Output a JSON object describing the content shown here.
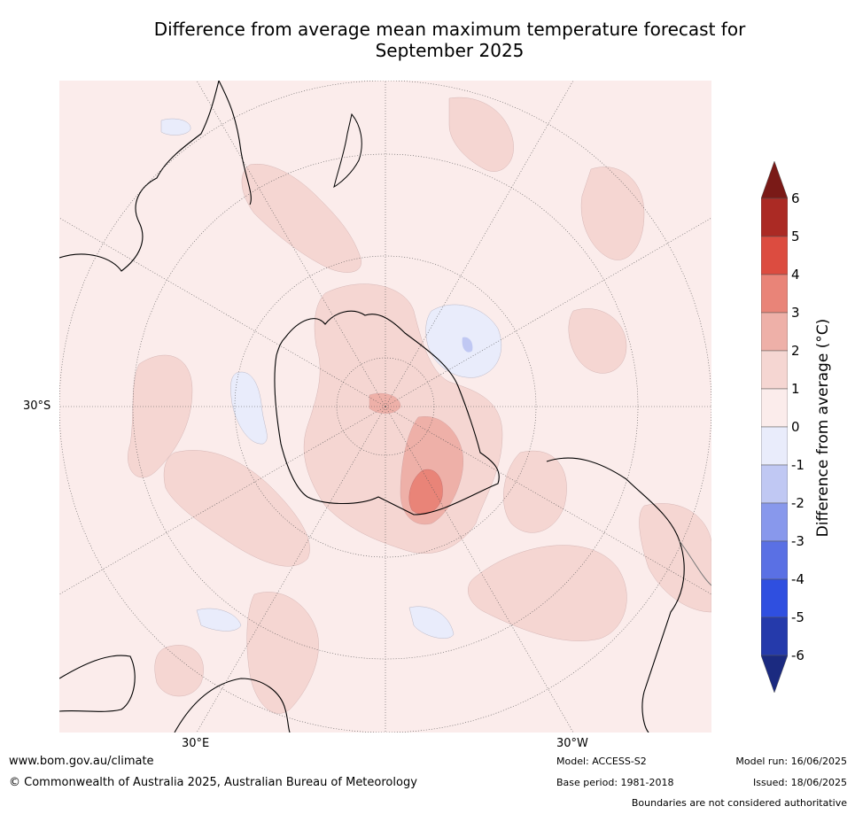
{
  "title_line1": "Difference from average mean maximum temperature forecast for",
  "title_line2": "September 2025",
  "lat_label": "30°S",
  "lon_labels": [
    "30°E",
    "30°W"
  ],
  "colorbar": {
    "label": "Difference from average (°C)",
    "ticks": [
      "6",
      "5",
      "4",
      "3",
      "2",
      "1",
      "0",
      "-1",
      "-2",
      "-3",
      "-4",
      "-5",
      "-6"
    ],
    "colors_top_to_bottom": [
      "#7a1a17",
      "#ab2a24",
      "#dc4c40",
      "#e98478",
      "#eeb0a8",
      "#f5d6d2",
      "#fbeceb",
      "#e9ecfb",
      "#c0c8f3",
      "#8898ec",
      "#5a70e4",
      "#2f4fe0",
      "#253aab",
      "#1b2a80"
    ]
  },
  "footer": {
    "website": "www.bom.gov.au/climate",
    "copyright": "© Commonwealth of Australia 2025, Australian Bureau of Meteorology",
    "model": "Model: ACCESS-S2",
    "base_period": "Base period: 1981-2018",
    "model_run": "Model run: 16/06/2025",
    "issued": "Issued: 18/06/2025",
    "disclaimer": "Boundaries are not considered authoritative"
  }
}
